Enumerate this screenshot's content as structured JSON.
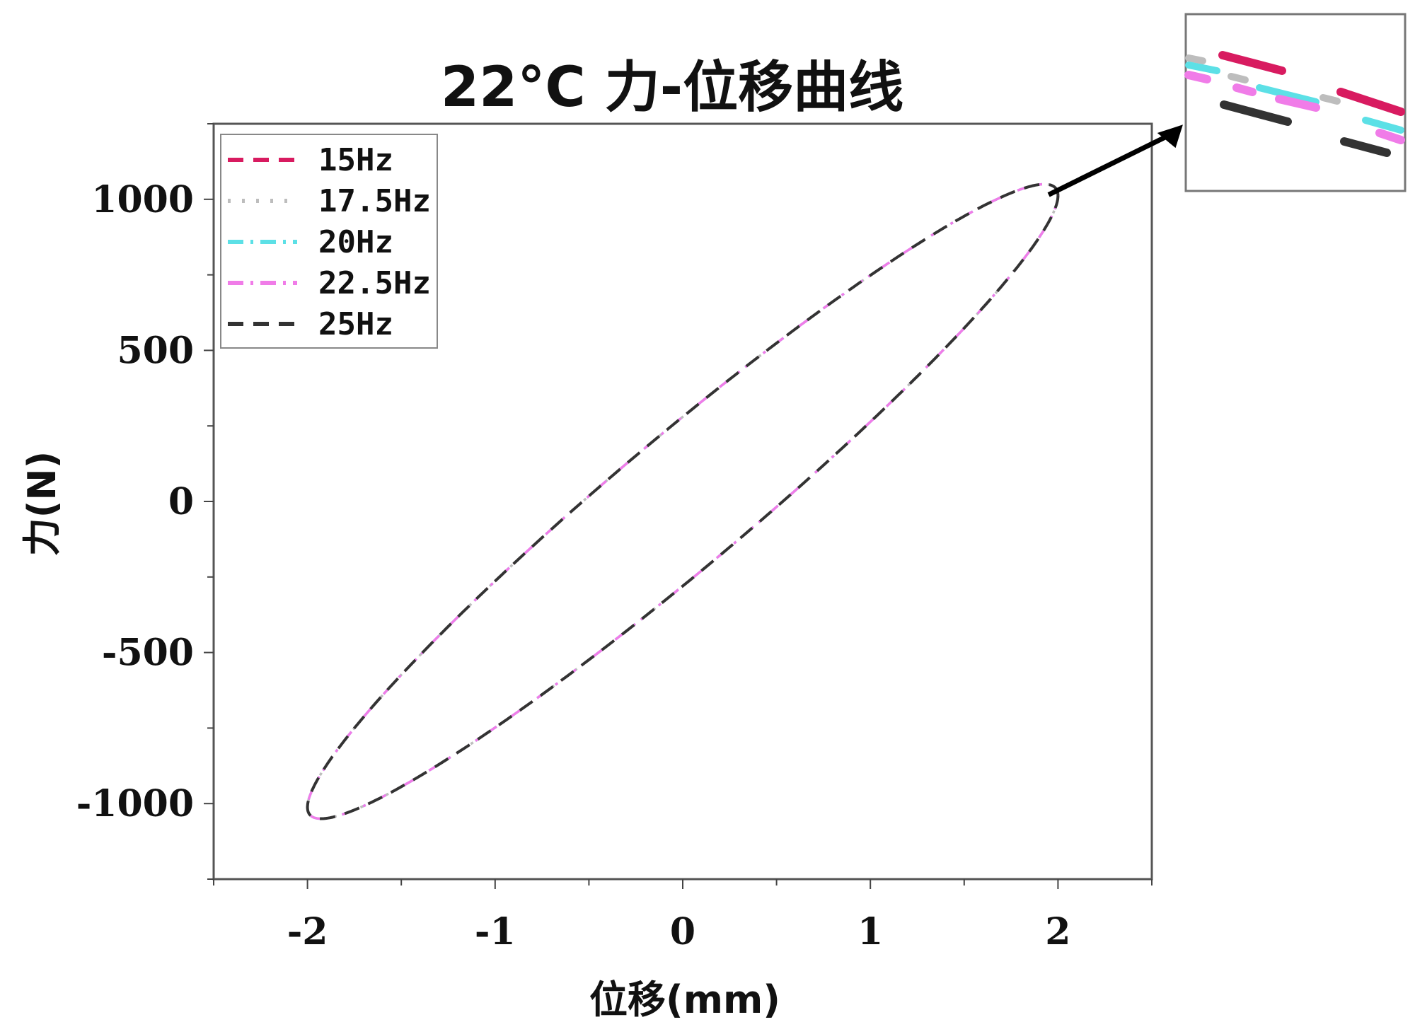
{
  "chart_data": {
    "type": "line",
    "title": "22°C 力-位移曲线",
    "xlabel": "位移(mm)",
    "ylabel": "力(N)",
    "xlim": [
      -2.5,
      2.5
    ],
    "ylim": [
      -1250,
      1250
    ],
    "xticks": [
      -2,
      -1,
      0,
      1,
      2
    ],
    "yticks": [
      -1000,
      -500,
      0,
      500,
      1000
    ],
    "xtick_labels": [
      "-2",
      "-1",
      "0",
      "1",
      "2"
    ],
    "ytick_labels": [
      "-1000",
      "-500",
      "0",
      "500",
      "1000"
    ],
    "grid": false,
    "legend_position": "top-left",
    "loop": {
      "amplitude_x": 2.0,
      "peak_force": 1050,
      "force_at_zero_displacement": 280
    },
    "series": [
      {
        "name": "15Hz",
        "color": "#d81b60",
        "dash": "dashed"
      },
      {
        "name": "17.5Hz",
        "color": "#bdbdbd",
        "dash": "dotted"
      },
      {
        "name": "20Hz",
        "color": "#5ce0e6",
        "dash": "dashdot"
      },
      {
        "name": "22.5Hz",
        "color": "#f07ce8",
        "dash": "dashdot"
      },
      {
        "name": "25Hz",
        "color": "#333333",
        "dash": "dashed"
      }
    ],
    "inset": {
      "type": "zoom",
      "target": "upper-right end of loop",
      "arrow": true
    }
  }
}
